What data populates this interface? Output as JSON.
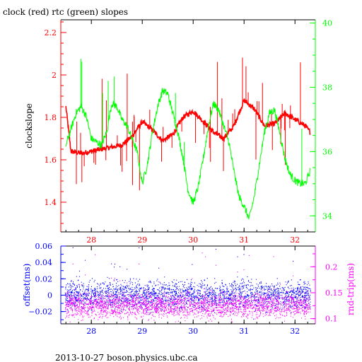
{
  "title": "clock (red) rtc (green) slopes",
  "footer": "2013-10-27 boson.physics.ubc.ca",
  "colors": {
    "red": "#ff0000",
    "green": "#00ff00",
    "blue": "#0000ff",
    "magenta": "#ff00ff",
    "axis": "#000000"
  },
  "chart_data": [
    {
      "type": "line",
      "title": "clock (red) rtc (green) slopes",
      "xlabel": "",
      "ylabel": "clockslope",
      "xlim": [
        27.4,
        32.4
      ],
      "ylim": [
        1.26,
        2.26
      ],
      "y2lim": [
        33.5,
        40.1
      ],
      "x_ticks": [
        28,
        29,
        30,
        31,
        32
      ],
      "y_ticks": [
        1.4,
        1.6,
        1.8,
        2,
        2.2
      ],
      "y2_ticks": [
        34,
        36,
        38,
        40
      ],
      "series": [
        {
          "name": "clock (red)",
          "axis": "left",
          "color": "#ff0000",
          "x": [
            27.5,
            27.6,
            27.8,
            28.0,
            28.2,
            28.4,
            28.6,
            28.8,
            29.0,
            29.2,
            29.4,
            29.6,
            29.8,
            30.0,
            30.2,
            30.4,
            30.6,
            30.8,
            31.0,
            31.2,
            31.4,
            31.6,
            31.8,
            32.0,
            32.2,
            32.3
          ],
          "y": [
            1.85,
            1.64,
            1.63,
            1.64,
            1.65,
            1.66,
            1.67,
            1.71,
            1.78,
            1.74,
            1.69,
            1.72,
            1.8,
            1.83,
            1.78,
            1.73,
            1.7,
            1.76,
            1.88,
            1.84,
            1.76,
            1.77,
            1.82,
            1.79,
            1.76,
            1.73
          ]
        },
        {
          "name": "rtc (green)",
          "axis": "right",
          "color": "#00ff00",
          "x": [
            27.5,
            27.6,
            27.7,
            27.8,
            27.9,
            28.0,
            28.2,
            28.3,
            28.4,
            28.5,
            28.6,
            28.7,
            28.8,
            28.9,
            29.0,
            29.1,
            29.2,
            29.3,
            29.4,
            29.5,
            29.6,
            29.7,
            29.8,
            29.9,
            30.0,
            30.1,
            30.2,
            30.3,
            30.4,
            30.5,
            30.6,
            30.7,
            30.8,
            30.9,
            31.0,
            31.1,
            31.2,
            31.3,
            31.4,
            31.5,
            31.6,
            31.7,
            31.8,
            31.9,
            32.0,
            32.1,
            32.2,
            32.3
          ],
          "y": [
            36.2,
            36.7,
            37.2,
            37.4,
            37.1,
            36.4,
            36.2,
            36.6,
            37.5,
            37.4,
            37.0,
            36.8,
            36.4,
            36.0,
            35.0,
            35.6,
            36.6,
            37.4,
            37.9,
            37.8,
            37.2,
            36.6,
            35.8,
            34.8,
            34.4,
            34.9,
            35.8,
            36.8,
            37.5,
            37.3,
            36.8,
            36.3,
            35.4,
            34.6,
            34.3,
            33.9,
            34.6,
            35.6,
            36.6,
            37.2,
            37.3,
            36.6,
            35.8,
            35.3,
            35.1,
            35.0,
            35.0,
            35.4
          ]
        }
      ]
    },
    {
      "type": "scatter",
      "xlabel": "",
      "ylabel": "offset(ms)",
      "y2label": "rnd-trip(ms)",
      "xlim": [
        27.4,
        32.4
      ],
      "ylim": [
        -0.035,
        0.06
      ],
      "y2lim": [
        0.09,
        0.24
      ],
      "x_ticks": [
        28,
        29,
        30,
        31,
        32
      ],
      "y_ticks": [
        -0.02,
        0,
        0.02,
        0.04,
        0.06
      ],
      "y2_ticks": [
        0.1,
        0.15,
        0.2
      ],
      "y_tick_labels": [
        "−0.02",
        "0",
        "0.02",
        "0.04",
        "0.06"
      ],
      "series": [
        {
          "name": "offset",
          "axis": "left",
          "color": "#0000ff",
          "band_center": 0.0,
          "band_halfwidth": 0.018
        },
        {
          "name": "rnd-trip",
          "axis": "right",
          "color": "#ff00ff",
          "band_center": 0.125,
          "band_halfwidth": 0.025
        }
      ]
    }
  ]
}
